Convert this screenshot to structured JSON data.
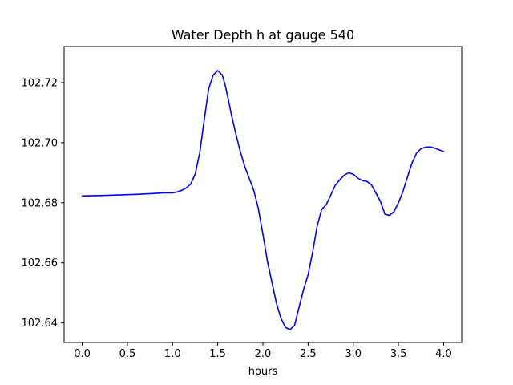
{
  "chart_data": {
    "type": "line",
    "title": "Water Depth h at gauge 540",
    "xlabel": "hours",
    "ylabel": "",
    "xlim": [
      -0.2,
      4.2
    ],
    "ylim": [
      102.6335,
      102.732
    ],
    "grid": false,
    "legend": "none",
    "xticks": [
      0.0,
      0.5,
      1.0,
      1.5,
      2.0,
      2.5,
      3.0,
      3.5,
      4.0
    ],
    "xtick_labels": [
      "0.0",
      "0.5",
      "1.0",
      "1.5",
      "2.0",
      "2.5",
      "3.0",
      "3.5",
      "4.0"
    ],
    "yticks": [
      102.64,
      102.66,
      102.68,
      102.7,
      102.72
    ],
    "ytick_labels": [
      "102.64",
      "102.66",
      "102.68",
      "102.70",
      "102.72"
    ],
    "series": [
      {
        "color": "#0000ff",
        "x": [
          0.0,
          0.2,
          0.4,
          0.6,
          0.8,
          0.9,
          1.0,
          1.05,
          1.1,
          1.15,
          1.2,
          1.25,
          1.3,
          1.35,
          1.4,
          1.45,
          1.5,
          1.55,
          1.58,
          1.62,
          1.65,
          1.7,
          1.75,
          1.8,
          1.85,
          1.9,
          1.95,
          2.0,
          2.05,
          2.1,
          2.15,
          2.2,
          2.25,
          2.3,
          2.35,
          2.4,
          2.45,
          2.5,
          2.55,
          2.6,
          2.65,
          2.7,
          2.75,
          2.8,
          2.85,
          2.9,
          2.95,
          3.0,
          3.05,
          3.1,
          3.15,
          3.2,
          3.3,
          3.35,
          3.4,
          3.45,
          3.5,
          3.55,
          3.6,
          3.65,
          3.7,
          3.75,
          3.8,
          3.85,
          3.9,
          3.95,
          4.0
        ],
        "y": [
          102.6823,
          102.6824,
          102.6826,
          102.6828,
          102.6831,
          102.6833,
          102.6833,
          102.6836,
          102.6841,
          102.6849,
          102.6862,
          102.6895,
          102.6965,
          102.7075,
          102.718,
          102.7225,
          102.724,
          102.7225,
          102.7195,
          102.714,
          102.7095,
          102.703,
          102.697,
          102.692,
          102.688,
          102.684,
          102.678,
          102.6695,
          102.6605,
          102.6535,
          102.6465,
          102.6415,
          102.6385,
          102.6378,
          102.6392,
          102.6452,
          102.6512,
          102.656,
          102.6635,
          102.6722,
          102.6778,
          102.6793,
          102.6825,
          102.6858,
          102.6876,
          102.6892,
          102.69,
          102.6895,
          102.6882,
          102.6874,
          102.6871,
          102.686,
          102.6805,
          102.6762,
          102.6758,
          102.677,
          102.68,
          102.6838,
          102.6886,
          102.6932,
          102.6965,
          102.698,
          102.6985,
          102.6986,
          102.6982,
          102.6976,
          102.6971
        ]
      }
    ]
  }
}
